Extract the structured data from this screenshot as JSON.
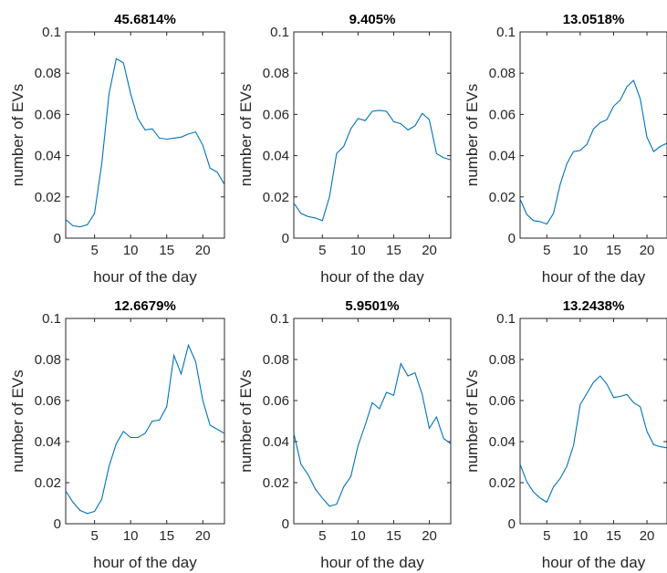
{
  "chart_data": [
    {
      "type": "line",
      "title": "45.6814%",
      "xlabel": "hour of the day",
      "ylabel": "number of EVs",
      "xlim": [
        1,
        23
      ],
      "ylim": [
        0,
        0.1
      ],
      "xticks": [
        "5",
        "10",
        "15",
        "20"
      ],
      "yticks": [
        "0",
        "0.02",
        "0.04",
        "0.06",
        "0.08",
        "0.1"
      ],
      "x": [
        1,
        2,
        3,
        4,
        5,
        6,
        7,
        8,
        9,
        10,
        11,
        12,
        13,
        14,
        15,
        16,
        17,
        18,
        19,
        20,
        21,
        22,
        23
      ],
      "series": [
        {
          "values": [
            0.009,
            0.006,
            0.0055,
            0.0065,
            0.012,
            0.036,
            0.07,
            0.087,
            0.085,
            0.07,
            0.058,
            0.0525,
            0.053,
            0.0485,
            0.048,
            0.0485,
            0.049,
            0.0505,
            0.0515,
            0.045,
            0.034,
            0.032,
            0.026
          ]
        }
      ],
      "grid": false
    },
    {
      "type": "line",
      "title": "9.405%",
      "xlabel": "hour of the day",
      "ylabel": "number of EVs",
      "xlim": [
        1,
        23
      ],
      "ylim": [
        0,
        0.1
      ],
      "xticks": [
        "5",
        "10",
        "15",
        "20"
      ],
      "yticks": [
        "0",
        "0.02",
        "0.04",
        "0.06",
        "0.08",
        "0.1"
      ],
      "x": [
        1,
        2,
        3,
        4,
        5,
        6,
        7,
        8,
        9,
        10,
        11,
        12,
        13,
        14,
        15,
        16,
        17,
        18,
        19,
        20,
        21,
        22,
        23
      ],
      "series": [
        {
          "values": [
            0.017,
            0.012,
            0.0105,
            0.0098,
            0.0085,
            0.02,
            0.041,
            0.0445,
            0.053,
            0.058,
            0.057,
            0.0615,
            0.062,
            0.0615,
            0.0565,
            0.0555,
            0.0525,
            0.0545,
            0.0605,
            0.0575,
            0.041,
            0.039,
            0.038
          ]
        }
      ],
      "grid": false
    },
    {
      "type": "line",
      "title": "13.0518%",
      "xlabel": "hour of the day",
      "ylabel": "number of EVs",
      "xlim": [
        1,
        23
      ],
      "ylim": [
        0,
        0.1
      ],
      "xticks": [
        "5",
        "10",
        "15",
        "20"
      ],
      "yticks": [
        "0",
        "0.02",
        "0.04",
        "0.06",
        "0.08",
        "0.1"
      ],
      "x": [
        1,
        2,
        3,
        4,
        5,
        6,
        7,
        8,
        9,
        10,
        11,
        12,
        13,
        14,
        15,
        16,
        17,
        18,
        19,
        20,
        21,
        22,
        23
      ],
      "series": [
        {
          "values": [
            0.019,
            0.0115,
            0.0085,
            0.008,
            0.0068,
            0.012,
            0.026,
            0.036,
            0.042,
            0.0425,
            0.0455,
            0.053,
            0.056,
            0.0575,
            0.064,
            0.067,
            0.0735,
            0.0765,
            0.0675,
            0.049,
            0.042,
            0.0445,
            0.046
          ]
        }
      ],
      "grid": false
    },
    {
      "type": "line",
      "title": "12.6679%",
      "xlabel": "hour of the day",
      "ylabel": "number of EVs",
      "xlim": [
        1,
        23
      ],
      "ylim": [
        0,
        0.1
      ],
      "xticks": [
        "5",
        "10",
        "15",
        "20"
      ],
      "yticks": [
        "0",
        "0.02",
        "0.04",
        "0.06",
        "0.08",
        "0.1"
      ],
      "x": [
        1,
        2,
        3,
        4,
        5,
        6,
        7,
        8,
        9,
        10,
        11,
        12,
        13,
        14,
        15,
        16,
        17,
        18,
        19,
        20,
        21,
        22,
        23
      ],
      "series": [
        {
          "values": [
            0.016,
            0.0105,
            0.0065,
            0.005,
            0.006,
            0.012,
            0.028,
            0.039,
            0.045,
            0.042,
            0.042,
            0.044,
            0.05,
            0.0505,
            0.057,
            0.082,
            0.073,
            0.087,
            0.079,
            0.06,
            0.048,
            0.046,
            0.044
          ]
        }
      ],
      "grid": false
    },
    {
      "type": "line",
      "title": "5.9501%",
      "xlabel": "hour of the day",
      "ylabel": "number of EVs",
      "xlim": [
        1,
        23
      ],
      "ylim": [
        0,
        0.1
      ],
      "xticks": [
        "5",
        "10",
        "15",
        "20"
      ],
      "yticks": [
        "0",
        "0.02",
        "0.04",
        "0.06",
        "0.08",
        "0.1"
      ],
      "x": [
        1,
        2,
        3,
        4,
        5,
        6,
        7,
        8,
        9,
        10,
        11,
        12,
        13,
        14,
        15,
        16,
        17,
        18,
        19,
        20,
        21,
        22,
        23
      ],
      "series": [
        {
          "values": [
            0.044,
            0.029,
            0.024,
            0.017,
            0.0125,
            0.0085,
            0.0095,
            0.018,
            0.023,
            0.038,
            0.048,
            0.059,
            0.056,
            0.064,
            0.0625,
            0.078,
            0.072,
            0.0735,
            0.063,
            0.0465,
            0.052,
            0.0415,
            0.039
          ]
        }
      ],
      "grid": false
    },
    {
      "type": "line",
      "title": "13.2438%",
      "xlabel": "hour of the day",
      "ylabel": "number of EVs",
      "xlim": [
        1,
        23
      ],
      "ylim": [
        0,
        0.1
      ],
      "xticks": [
        "5",
        "10",
        "15",
        "20"
      ],
      "yticks": [
        "0",
        "0.02",
        "0.04",
        "0.06",
        "0.08",
        "0.1"
      ],
      "x": [
        1,
        2,
        3,
        4,
        5,
        6,
        7,
        8,
        9,
        10,
        11,
        12,
        13,
        14,
        15,
        16,
        17,
        18,
        19,
        20,
        21,
        22,
        23
      ],
      "series": [
        {
          "values": [
            0.029,
            0.0205,
            0.0155,
            0.0125,
            0.0105,
            0.018,
            0.022,
            0.028,
            0.038,
            0.058,
            0.0635,
            0.069,
            0.072,
            0.068,
            0.0615,
            0.062,
            0.063,
            0.059,
            0.057,
            0.045,
            0.0385,
            0.0375,
            0.037
          ]
        }
      ],
      "grid": false
    }
  ]
}
